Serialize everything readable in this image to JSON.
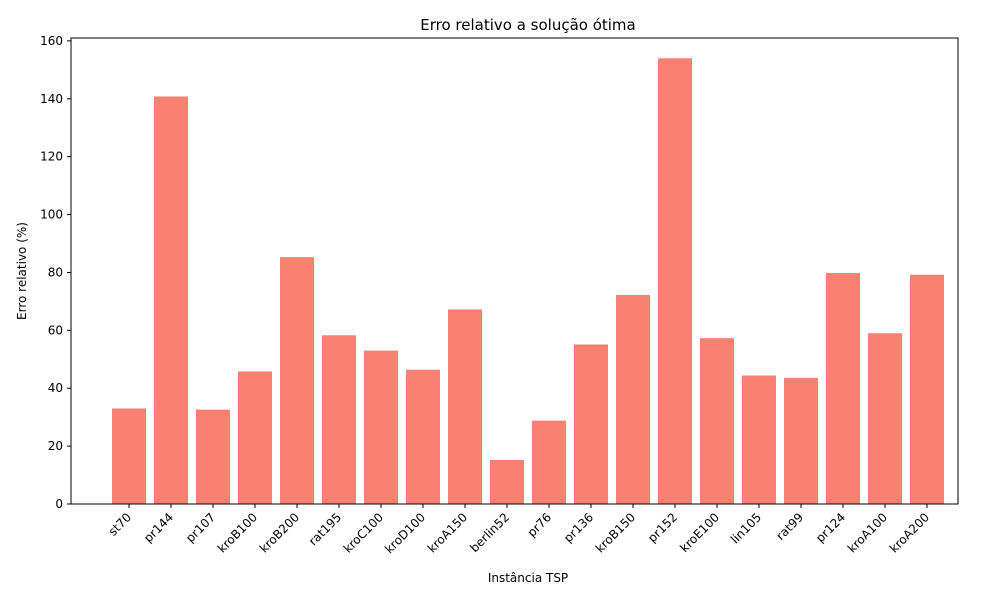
{
  "chart_data": {
    "type": "bar",
    "title": "Erro relativo a solução ótima",
    "xlabel": "Instância TSP",
    "ylabel": "Erro relativo (%)",
    "categories": [
      "st70",
      "pr144",
      "pr107",
      "kroB100",
      "kroB200",
      "rat195",
      "kroC100",
      "kroD100",
      "kroA150",
      "berlin52",
      "pr76",
      "pr136",
      "kroB150",
      "pr152",
      "kroE100",
      "lin105",
      "rat99",
      "pr124",
      "kroA100",
      "kroA200"
    ],
    "values": [
      33.0,
      140.8,
      32.6,
      45.8,
      85.3,
      58.3,
      53.0,
      46.4,
      67.2,
      15.2,
      28.8,
      55.1,
      72.2,
      154.0,
      57.3,
      44.4,
      43.6,
      79.8,
      59.0,
      79.2
    ],
    "ylim": [
      0,
      161
    ],
    "yticks": [
      0,
      20,
      40,
      60,
      80,
      100,
      120,
      140,
      160
    ],
    "bar_color": "#fa8072",
    "grid": false,
    "legend": "none"
  }
}
